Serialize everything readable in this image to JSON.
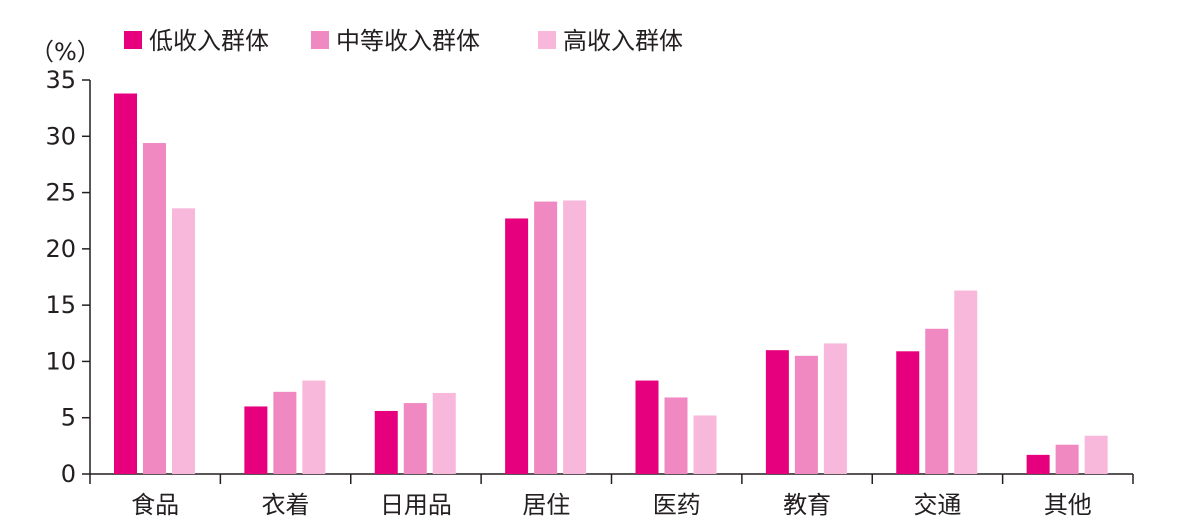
{
  "chart_data": {
    "type": "bar",
    "unit": "（%）",
    "categories": [
      "食品",
      "衣着",
      "日用品",
      "居住",
      "医药",
      "教育",
      "交通",
      "其他"
    ],
    "series": [
      {
        "name": "低收入群体",
        "color": "#e6007e",
        "values": [
          33.8,
          6.0,
          5.6,
          22.7,
          8.3,
          11.0,
          10.9,
          1.7
        ]
      },
      {
        "name": "中等收入群体",
        "color": "#f088c2",
        "values": [
          29.4,
          7.3,
          6.3,
          24.2,
          6.8,
          10.5,
          12.9,
          2.6
        ]
      },
      {
        "name": "高收入群体",
        "color": "#f8b8db",
        "values": [
          23.6,
          8.3,
          7.2,
          24.3,
          5.2,
          11.6,
          16.3,
          3.4
        ]
      }
    ],
    "ylim": [
      0,
      35
    ],
    "yticks": [
      0,
      5,
      10,
      15,
      20,
      25,
      30,
      35
    ],
    "grid": false,
    "legend_position": "top"
  }
}
